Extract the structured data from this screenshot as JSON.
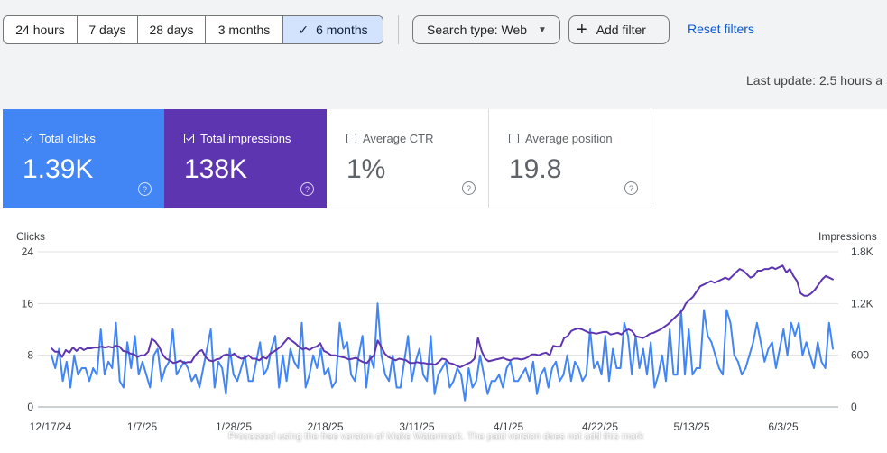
{
  "date_range": {
    "options": [
      {
        "label": "24 hours",
        "selected": false
      },
      {
        "label": "7 days",
        "selected": false
      },
      {
        "label": "28 days",
        "selected": false
      },
      {
        "label": "3 months",
        "selected": false
      },
      {
        "label": "6 months",
        "selected": true
      }
    ]
  },
  "filters": {
    "search_type_label": "Search type: Web",
    "add_filter_label": "Add filter",
    "reset_label": "Reset filters"
  },
  "last_update": "Last update: 2.5 hours a",
  "metrics": [
    {
      "label": "Total clicks",
      "value": "1.39K",
      "checked": true,
      "color": "#4285f4"
    },
    {
      "label": "Total impressions",
      "value": "138K",
      "checked": true,
      "color": "#5e35b1"
    },
    {
      "label": "Average CTR",
      "value": "1%",
      "checked": false
    },
    {
      "label": "Average position",
      "value": "19.8",
      "checked": false
    }
  ],
  "help_glyph": "?",
  "check_glyph": "✓",
  "watermark_note": "Processed using the free version of Make Watermark. The paid version does not add this mark",
  "chart_data": {
    "type": "line",
    "xlabel": "",
    "left_axis": {
      "label": "Clicks",
      "ticks": [
        "24",
        "16",
        "8",
        "0"
      ],
      "range": [
        0,
        24
      ]
    },
    "right_axis": {
      "label": "Impressions",
      "ticks": [
        "1.8K",
        "1.2K",
        "600",
        "0"
      ],
      "range": [
        0,
        1800
      ]
    },
    "x_tick_labels": [
      "12/17/24",
      "1/7/25",
      "1/28/25",
      "2/18/25",
      "3/11/25",
      "4/1/25",
      "4/22/25",
      "5/13/25",
      "6/3/25"
    ],
    "gridlines": true,
    "series": [
      {
        "name": "",
        "axis": "left",
        "color": "#4285f4",
        "values": [
          8,
          6,
          9,
          4,
          7,
          3,
          8,
          5,
          6,
          6,
          4,
          6,
          5,
          12,
          5,
          7,
          6,
          13,
          4,
          3,
          10,
          6,
          11,
          5,
          7,
          5,
          3,
          8,
          9,
          4,
          6,
          7,
          12,
          5,
          6,
          7,
          6,
          4,
          5,
          3,
          6,
          9,
          12,
          3,
          7,
          6,
          2,
          9,
          5,
          4,
          6,
          8,
          4,
          4,
          7,
          10,
          5,
          6,
          9,
          11,
          3,
          8,
          4,
          9,
          7,
          6,
          13,
          3,
          5,
          8,
          6,
          9,
          5,
          6,
          3,
          4,
          13,
          9,
          10,
          5,
          4,
          8,
          11,
          3,
          8,
          6,
          16,
          8,
          5,
          4,
          8,
          3,
          3,
          7,
          11,
          4,
          7,
          9,
          5,
          4,
          11,
          2,
          5,
          6,
          7,
          3,
          4,
          6,
          5,
          1,
          6,
          3,
          4,
          8,
          5,
          2,
          4,
          4,
          5,
          3,
          6,
          7,
          4,
          4,
          5,
          6,
          4,
          7,
          2,
          5,
          6,
          3,
          6,
          7,
          4,
          5,
          8,
          4,
          7,
          6,
          4,
          5,
          12,
          6,
          7,
          5,
          11,
          4,
          9,
          6,
          6,
          13,
          11,
          5,
          11,
          6,
          9,
          5,
          10,
          3,
          5,
          8,
          4,
          12,
          5,
          5,
          15,
          5,
          12,
          5,
          6,
          6,
          15,
          11,
          10,
          8,
          6,
          5,
          15,
          13,
          8,
          7,
          5,
          6,
          8,
          10,
          13,
          10,
          7,
          9,
          10,
          6,
          9,
          12,
          8,
          13,
          11,
          13,
          8,
          10,
          8,
          6,
          10,
          7,
          6,
          13,
          9
        ]
      },
      {
        "name": "",
        "axis": "right",
        "color": "#5e35b1",
        "values": [
          680,
          640,
          640,
          580,
          660,
          630,
          690,
          650,
          690,
          660,
          680,
          680,
          690,
          690,
          700,
          690,
          700,
          690,
          710,
          700,
          650,
          640,
          620,
          610,
          580,
          600,
          600,
          640,
          790,
          760,
          700,
          610,
          560,
          540,
          510,
          520,
          540,
          510,
          520,
          520,
          590,
          640,
          660,
          580,
          540,
          530,
          550,
          560,
          600,
          610,
          590,
          620,
          580,
          560,
          570,
          600,
          560,
          560,
          540,
          580,
          560,
          620,
          640,
          670,
          700,
          750,
          800,
          770,
          740,
          700,
          670,
          680,
          660,
          690,
          700,
          740,
          650,
          630,
          600,
          600,
          590,
          580,
          570,
          550,
          560,
          570,
          540,
          520,
          510,
          560,
          600,
          770,
          700,
          620,
          580,
          560,
          540,
          560,
          550,
          540,
          510,
          510,
          520,
          510,
          510,
          500,
          500,
          490,
          520,
          560,
          550,
          510,
          500,
          480,
          460,
          480,
          500,
          520,
          560,
          800,
          650,
          560,
          530,
          540,
          550,
          560,
          570,
          550,
          540,
          560,
          560,
          550,
          560,
          580,
          610,
          610,
          600,
          620,
          630,
          600,
          710,
          700,
          700,
          800,
          820,
          880,
          900,
          910,
          900,
          880,
          860,
          860,
          850,
          860,
          870,
          870,
          840,
          850,
          860,
          840,
          880,
          900,
          880,
          820,
          810,
          800,
          820,
          850,
          860,
          880,
          900,
          930,
          960,
          1000,
          1040,
          1080,
          1120,
          1200,
          1240,
          1280,
          1340,
          1400,
          1420,
          1440,
          1460,
          1440,
          1460,
          1480,
          1500,
          1480,
          1520,
          1560,
          1600,
          1580,
          1540,
          1500,
          1520,
          1580,
          1580,
          1600,
          1600,
          1620,
          1600,
          1620,
          1640,
          1560,
          1600,
          1520,
          1460,
          1320,
          1290,
          1290,
          1320,
          1360,
          1420,
          1480,
          1520,
          1500,
          1480
        ]
      }
    ]
  }
}
